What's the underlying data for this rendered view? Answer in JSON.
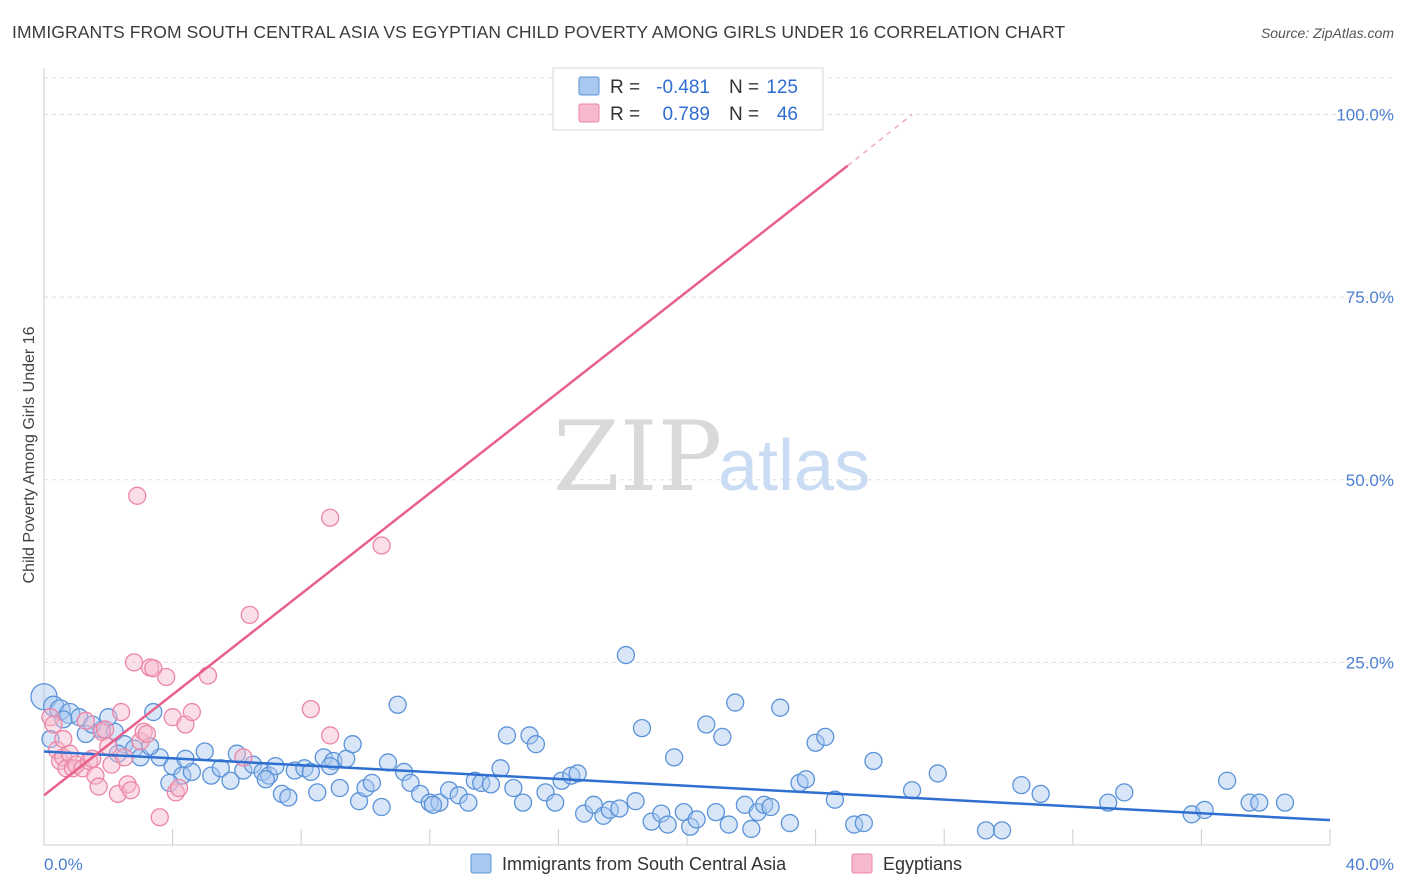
{
  "title": "IMMIGRANTS FROM SOUTH CENTRAL ASIA VS EGYPTIAN CHILD POVERTY AMONG GIRLS UNDER 16 CORRELATION CHART",
  "source": "Source: ZipAtlas.com",
  "watermark": {
    "part1": "ZIP",
    "part2": "atlas"
  },
  "legend": {
    "r_label": "R =",
    "n_label": "N =",
    "series1": {
      "r": "-0.481",
      "n": "125"
    },
    "series2": {
      "r": "0.789",
      "n": "46"
    }
  },
  "colors": {
    "blue_fill": "#a9c8ef",
    "blue_stroke": "#5b93d9",
    "blue_line": "#2e6fd0",
    "pink_fill": "#f7b9cc",
    "pink_stroke": "#ec86a6",
    "pink_line": "#e8608a",
    "grid": "#dddddd",
    "tick_label": "#4a7fd0"
  },
  "chart_data": {
    "type": "scatter",
    "ylabel": "Child Poverty Among Girls Under 16",
    "xlim": [
      0,
      40
    ],
    "ylim": [
      0,
      105
    ],
    "x_tick_labels": [
      {
        "value": 0,
        "label": "0.0%"
      },
      {
        "value": 40,
        "label": "40.0%"
      }
    ],
    "y_tick_labels": [
      {
        "value": 25,
        "label": "25.0%"
      },
      {
        "value": 50,
        "label": "50.0%"
      },
      {
        "value": 75,
        "label": "75.0%"
      },
      {
        "value": 100,
        "label": "100.0%"
      }
    ],
    "grid": true,
    "series": [
      {
        "name": "Immigrants from South Central Asia",
        "color": "blue",
        "trend": {
          "x1": 0,
          "y1": 12.8,
          "x2": 40,
          "y2": 3.4
        },
        "points": [
          [
            0.0,
            20.3
          ],
          [
            0.3,
            19.0
          ],
          [
            0.5,
            18.5
          ],
          [
            0.8,
            18.0
          ],
          [
            1.1,
            17.5
          ],
          [
            0.6,
            17.2
          ],
          [
            1.3,
            15.2
          ],
          [
            1.8,
            15.8
          ],
          [
            1.5,
            16.5
          ],
          [
            2.2,
            15.5
          ],
          [
            2.5,
            13.8
          ],
          [
            2.8,
            13.2
          ],
          [
            3.4,
            18.2
          ],
          [
            2.3,
            12.5
          ],
          [
            3.0,
            12.0
          ],
          [
            3.6,
            12.0
          ],
          [
            4.0,
            10.8
          ],
          [
            4.3,
            9.5
          ],
          [
            3.9,
            8.5
          ],
          [
            4.6,
            10.0
          ],
          [
            5.0,
            12.8
          ],
          [
            5.2,
            9.5
          ],
          [
            5.5,
            10.5
          ],
          [
            5.8,
            8.8
          ],
          [
            6.0,
            12.5
          ],
          [
            6.2,
            10.2
          ],
          [
            6.5,
            11.0
          ],
          [
            6.8,
            10.0
          ],
          [
            7.0,
            9.5
          ],
          [
            7.2,
            10.8
          ],
          [
            7.4,
            7.0
          ],
          [
            7.6,
            6.5
          ],
          [
            7.8,
            10.2
          ],
          [
            8.1,
            10.5
          ],
          [
            8.3,
            10.0
          ],
          [
            8.5,
            7.2
          ],
          [
            8.7,
            12.0
          ],
          [
            9.0,
            11.5
          ],
          [
            9.2,
            7.8
          ],
          [
            9.4,
            11.8
          ],
          [
            9.6,
            13.8
          ],
          [
            9.8,
            6.0
          ],
          [
            10.0,
            7.8
          ],
          [
            10.2,
            8.5
          ],
          [
            10.5,
            5.2
          ],
          [
            10.7,
            11.3
          ],
          [
            11.0,
            19.2
          ],
          [
            11.2,
            10.0
          ],
          [
            11.4,
            8.5
          ],
          [
            11.7,
            7.0
          ],
          [
            12.0,
            5.8
          ],
          [
            12.3,
            5.8
          ],
          [
            12.6,
            7.5
          ],
          [
            12.9,
            6.8
          ],
          [
            13.2,
            5.8
          ],
          [
            13.4,
            8.8
          ],
          [
            13.6,
            8.5
          ],
          [
            13.9,
            8.3
          ],
          [
            14.2,
            10.5
          ],
          [
            14.4,
            15.0
          ],
          [
            14.6,
            7.8
          ],
          [
            14.9,
            5.8
          ],
          [
            15.1,
            15.0
          ],
          [
            15.3,
            13.8
          ],
          [
            15.6,
            7.2
          ],
          [
            15.9,
            5.8
          ],
          [
            16.1,
            8.8
          ],
          [
            16.4,
            9.5
          ],
          [
            16.6,
            9.8
          ],
          [
            16.8,
            4.3
          ],
          [
            17.1,
            5.5
          ],
          [
            17.4,
            4.0
          ],
          [
            17.6,
            4.8
          ],
          [
            17.9,
            5.0
          ],
          [
            18.1,
            26.0
          ],
          [
            18.4,
            6.0
          ],
          [
            18.6,
            16.0
          ],
          [
            18.9,
            3.2
          ],
          [
            19.2,
            4.3
          ],
          [
            19.4,
            2.8
          ],
          [
            19.6,
            12.0
          ],
          [
            19.9,
            4.5
          ],
          [
            20.1,
            2.5
          ],
          [
            20.3,
            3.5
          ],
          [
            20.6,
            16.5
          ],
          [
            20.9,
            4.5
          ],
          [
            21.1,
            14.8
          ],
          [
            21.3,
            2.8
          ],
          [
            21.5,
            19.5
          ],
          [
            21.8,
            5.5
          ],
          [
            22.0,
            2.2
          ],
          [
            22.2,
            4.5
          ],
          [
            22.4,
            5.5
          ],
          [
            22.6,
            5.2
          ],
          [
            22.9,
            18.8
          ],
          [
            23.2,
            3.0
          ],
          [
            23.5,
            8.5
          ],
          [
            23.7,
            9.0
          ],
          [
            24.0,
            14.0
          ],
          [
            24.3,
            14.8
          ],
          [
            24.6,
            6.2
          ],
          [
            25.2,
            2.8
          ],
          [
            25.5,
            3.0
          ],
          [
            25.8,
            11.5
          ],
          [
            27.0,
            7.5
          ],
          [
            27.8,
            9.8
          ],
          [
            29.3,
            2.0
          ],
          [
            29.8,
            2.0
          ],
          [
            30.4,
            8.2
          ],
          [
            31.0,
            7.0
          ],
          [
            33.1,
            5.8
          ],
          [
            33.6,
            7.2
          ],
          [
            35.7,
            4.2
          ],
          [
            36.1,
            4.8
          ],
          [
            36.8,
            8.8
          ],
          [
            37.5,
            5.8
          ],
          [
            37.8,
            5.8
          ],
          [
            38.6,
            5.8
          ],
          [
            0.2,
            14.5
          ],
          [
            2.0,
            17.5
          ],
          [
            3.3,
            13.5
          ],
          [
            4.4,
            11.8
          ],
          [
            6.9,
            9.0
          ],
          [
            8.9,
            10.8
          ],
          [
            12.1,
            5.5
          ]
        ]
      },
      {
        "name": "Egyptians",
        "color": "pink",
        "trend": {
          "x1": 0,
          "y1": 6.8,
          "x2": 25.0,
          "y2": 93.0,
          "dash_x2": 27.0,
          "dash_y2": 100.0
        },
        "points": [
          [
            0.2,
            17.5
          ],
          [
            0.3,
            16.5
          ],
          [
            0.4,
            13.0
          ],
          [
            0.5,
            11.5
          ],
          [
            0.6,
            12.0
          ],
          [
            0.7,
            10.5
          ],
          [
            0.8,
            12.5
          ],
          [
            0.9,
            10.5
          ],
          [
            1.0,
            11.0
          ],
          [
            1.2,
            10.5
          ],
          [
            1.3,
            17.0
          ],
          [
            1.4,
            11.5
          ],
          [
            1.5,
            11.8
          ],
          [
            1.6,
            9.5
          ],
          [
            1.7,
            8.0
          ],
          [
            1.8,
            15.5
          ],
          [
            2.0,
            13.5
          ],
          [
            2.1,
            11.0
          ],
          [
            2.3,
            7.0
          ],
          [
            2.4,
            18.2
          ],
          [
            2.5,
            12.0
          ],
          [
            2.6,
            8.3
          ],
          [
            2.7,
            7.5
          ],
          [
            2.8,
            25.0
          ],
          [
            2.9,
            47.8
          ],
          [
            3.0,
            14.2
          ],
          [
            3.1,
            15.5
          ],
          [
            3.2,
            15.2
          ],
          [
            3.3,
            24.3
          ],
          [
            3.4,
            24.2
          ],
          [
            3.6,
            3.8
          ],
          [
            3.8,
            23.0
          ],
          [
            4.0,
            17.5
          ],
          [
            4.1,
            7.2
          ],
          [
            4.2,
            7.8
          ],
          [
            4.4,
            16.5
          ],
          [
            4.6,
            18.2
          ],
          [
            5.1,
            23.2
          ],
          [
            6.2,
            12.0
          ],
          [
            6.4,
            31.5
          ],
          [
            8.3,
            18.6
          ],
          [
            8.9,
            15.0
          ],
          [
            8.9,
            44.8
          ],
          [
            10.5,
            41.0
          ],
          [
            1.9,
            15.8
          ],
          [
            0.6,
            14.5
          ]
        ]
      }
    ]
  }
}
